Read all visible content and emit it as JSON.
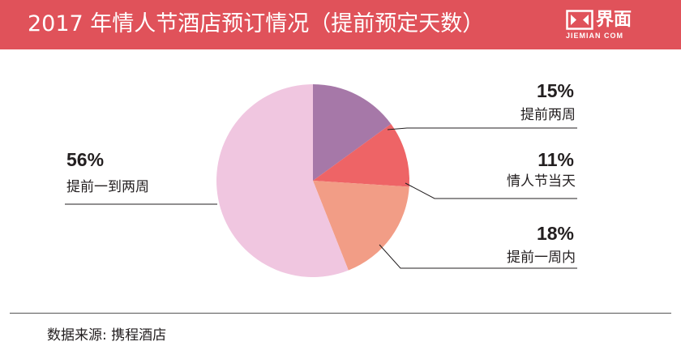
{
  "header": {
    "title": "2017 年情人节酒店预订情况（提前预定天数）",
    "logo_text": "界面",
    "logo_sub": "JIEMIAN COM",
    "background_color": "#e0525a"
  },
  "chart_data": {
    "type": "pie",
    "title": "2017 年情人节酒店预订情况（提前预定天数）",
    "slices": [
      {
        "label": "提前两周",
        "percent_label": "15%",
        "value": 15,
        "color": "#a678a8"
      },
      {
        "label": "情人节当天",
        "percent_label": "11%",
        "value": 11,
        "color": "#ee6466"
      },
      {
        "label": "提前一周内",
        "percent_label": "18%",
        "value": 18,
        "color": "#f29d86"
      },
      {
        "label": "提前一到两周",
        "percent_label": "56%",
        "value": 56,
        "color": "#f0c6e0"
      }
    ]
  },
  "source": "数据来源: 携程酒店"
}
